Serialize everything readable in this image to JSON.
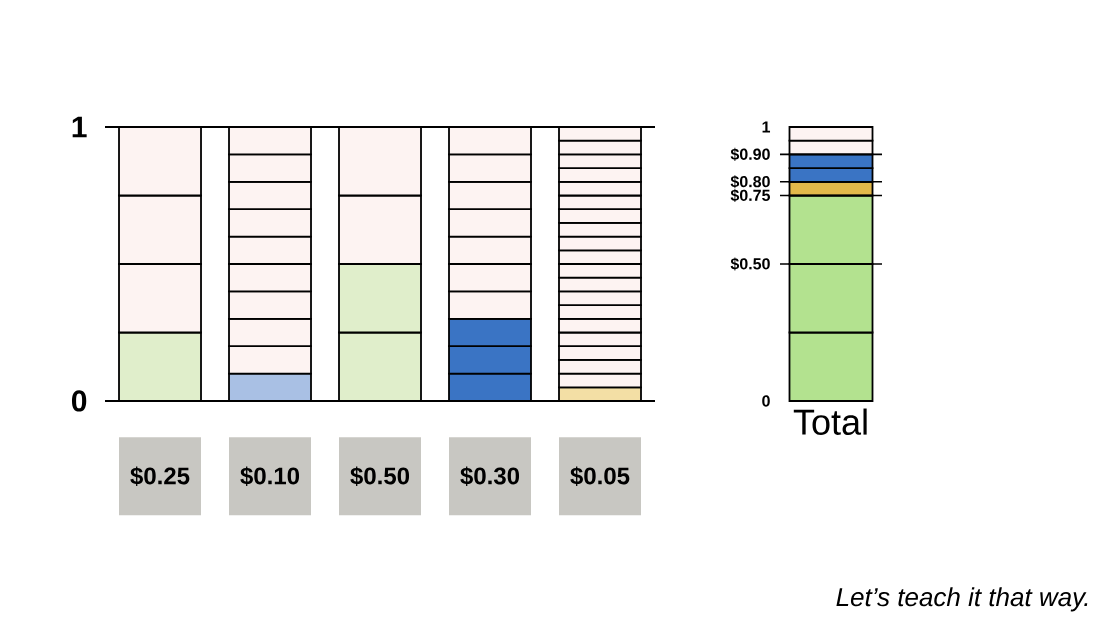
{
  "chart_data": [
    {
      "type": "bar",
      "stacked": true,
      "categories": [
        "$0.25",
        "$0.10",
        "$0.50",
        "$0.30",
        "$0.05"
      ],
      "ylim": [
        0,
        1
      ],
      "yticks": [
        0,
        1
      ],
      "grid": "y",
      "series": [
        {
          "values": [
            0.25,
            0.1,
            0.25,
            0.1,
            0.05
          ],
          "colors": [
            "#e0eecb",
            "#a9c0e4",
            "#e0eecb",
            "#3a74c4",
            "#f3dfa5"
          ]
        },
        {
          "values": [
            0.25,
            0.1,
            0.25,
            0.1,
            0.05
          ],
          "colors": [
            "#fdf3f2",
            "#fdf3f2",
            "#e0eecb",
            "#3a74c4",
            "#fdf3f2"
          ]
        },
        {
          "values": [
            0.25,
            0.1,
            0.25,
            0.1,
            0.05
          ],
          "colors": [
            "#fdf3f2",
            "#fdf3f2",
            "#fdf3f2",
            "#3a74c4",
            "#fdf3f2"
          ]
        },
        {
          "values": [
            0.25,
            0.1,
            0.25,
            0.1,
            0.05
          ],
          "colors": [
            "#fdf3f2",
            "#fdf3f2",
            "#fdf3f2",
            "#fdf3f2",
            "#fdf3f2"
          ]
        },
        {
          "values": [
            null,
            0.1,
            null,
            0.1,
            0.05
          ],
          "colors": [
            null,
            "#fdf3f2",
            null,
            "#fdf3f2",
            "#fdf3f2"
          ]
        },
        {
          "values": [
            null,
            0.1,
            null,
            0.1,
            0.05
          ],
          "colors": [
            null,
            "#fdf3f2",
            null,
            "#fdf3f2",
            "#fdf3f2"
          ]
        },
        {
          "values": [
            null,
            0.1,
            null,
            0.1,
            0.05
          ],
          "colors": [
            null,
            "#fdf3f2",
            null,
            "#fdf3f2",
            "#fdf3f2"
          ]
        },
        {
          "values": [
            null,
            0.1,
            null,
            0.1,
            0.05
          ],
          "colors": [
            null,
            "#fdf3f2",
            null,
            "#fdf3f2",
            "#fdf3f2"
          ]
        },
        {
          "values": [
            null,
            0.1,
            null,
            0.1,
            0.05
          ],
          "colors": [
            null,
            "#fdf3f2",
            null,
            "#fdf3f2",
            "#fdf3f2"
          ]
        },
        {
          "values": [
            null,
            0.1,
            null,
            0.1,
            0.05
          ],
          "colors": [
            null,
            "#fdf3f2",
            null,
            "#fdf3f2",
            "#fdf3f2"
          ]
        },
        {
          "values": [
            null,
            null,
            null,
            null,
            0.05
          ],
          "colors": [
            null,
            null,
            null,
            null,
            "#fdf3f2"
          ]
        },
        {
          "values": [
            null,
            null,
            null,
            null,
            0.05
          ],
          "colors": [
            null,
            null,
            null,
            null,
            "#fdf3f2"
          ]
        },
        {
          "values": [
            null,
            null,
            null,
            null,
            0.05
          ],
          "colors": [
            null,
            null,
            null,
            null,
            "#fdf3f2"
          ]
        },
        {
          "values": [
            null,
            null,
            null,
            null,
            0.05
          ],
          "colors": [
            null,
            null,
            null,
            null,
            "#fdf3f2"
          ]
        },
        {
          "values": [
            null,
            null,
            null,
            null,
            0.05
          ],
          "colors": [
            null,
            null,
            null,
            null,
            "#fdf3f2"
          ]
        },
        {
          "values": [
            null,
            null,
            null,
            null,
            0.05
          ],
          "colors": [
            null,
            null,
            null,
            null,
            "#fdf3f2"
          ]
        },
        {
          "values": [
            null,
            null,
            null,
            null,
            0.05
          ],
          "colors": [
            null,
            null,
            null,
            null,
            "#fdf3f2"
          ]
        },
        {
          "values": [
            null,
            null,
            null,
            null,
            0.05
          ],
          "colors": [
            null,
            null,
            null,
            null,
            "#fdf3f2"
          ]
        },
        {
          "values": [
            null,
            null,
            null,
            null,
            0.05
          ],
          "colors": [
            null,
            null,
            null,
            null,
            "#fdf3f2"
          ]
        },
        {
          "values": [
            null,
            null,
            null,
            null,
            0.05
          ],
          "colors": [
            null,
            null,
            null,
            null,
            "#fdf3f2"
          ]
        }
      ]
    },
    {
      "type": "bar",
      "stacked": true,
      "categories": [
        "Total"
      ],
      "ylim": [
        0,
        1
      ],
      "ref_lines": [
        {
          "axis": "y",
          "value": 0.5
        },
        {
          "axis": "y",
          "value": 0.75
        },
        {
          "axis": "y",
          "value": 0.8
        },
        {
          "axis": "y",
          "value": 0.9
        }
      ],
      "yticks": [
        {
          "value": 0,
          "label": "0"
        },
        {
          "value": 0.5,
          "label": "$0.50"
        },
        {
          "value": 0.75,
          "label": "$0.75"
        },
        {
          "value": 0.8,
          "label": "$0.80"
        },
        {
          "value": 0.9,
          "label": "$0.90"
        },
        {
          "value": 1,
          "label": "1"
        }
      ],
      "annotations": [
        "Let’s teach it that way."
      ],
      "series": [
        {
          "values": [
            0.25
          ],
          "color": "#b3e28f"
        },
        {
          "values": [
            0.25
          ],
          "color": "#b3e28f"
        },
        {
          "values": [
            0.25
          ],
          "color": "#b3e28f"
        },
        {
          "values": [
            0.05
          ],
          "color": "#e2b84a"
        },
        {
          "values": [
            0.05
          ],
          "color": "#3a74c4"
        },
        {
          "values": [
            0.05
          ],
          "color": "#3a74c4"
        },
        {
          "values": [
            0.05
          ],
          "color": "#fdf3f2"
        },
        {
          "values": [
            0.05
          ],
          "color": "#fdf3f2"
        }
      ]
    }
  ]
}
